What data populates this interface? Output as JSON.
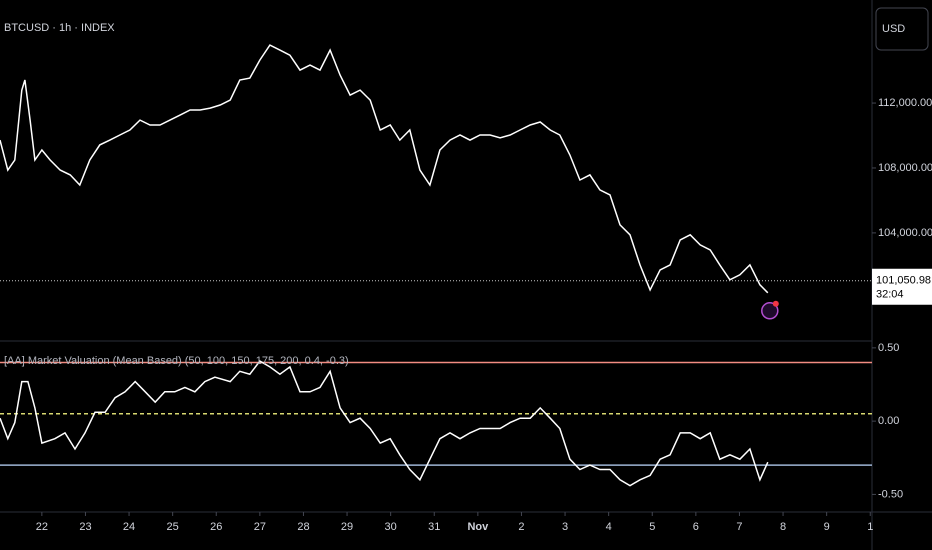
{
  "chart_data": [
    {
      "type": "line",
      "title": "BTCUSD · 1h · INDEX",
      "currency": "USD",
      "x": [
        21.04,
        21.22,
        21.38,
        21.54,
        21.61,
        21.73,
        21.84,
        22.0,
        22.19,
        22.42,
        22.65,
        22.87,
        23.1,
        23.33,
        23.56,
        23.79,
        24.02,
        24.25,
        24.48,
        24.71,
        24.94,
        25.17,
        25.4,
        25.63,
        25.86,
        26.09,
        26.32,
        26.54,
        26.77,
        27.0,
        27.23,
        27.46,
        27.69,
        27.92,
        28.15,
        28.38,
        28.61,
        28.84,
        29.07,
        29.3,
        29.53,
        29.76,
        29.99,
        30.21,
        30.44,
        30.67,
        30.9,
        31.13,
        31.36,
        31.59,
        31.82,
        32.05,
        32.28,
        32.51,
        32.74,
        32.97,
        33.2,
        33.43,
        33.66,
        33.88,
        34.11,
        34.34,
        34.57,
        34.8,
        35.03,
        35.26,
        35.49,
        35.72,
        35.95,
        36.18,
        36.41,
        36.64,
        36.87,
        37.1,
        37.33,
        37.55,
        37.78,
        38.01,
        38.24,
        38.47,
        38.65
      ],
      "values": [
        109720,
        107870,
        108490,
        112800,
        113420,
        110950,
        108490,
        109110,
        108490,
        107870,
        107570,
        106950,
        108490,
        109420,
        109720,
        110030,
        110340,
        110950,
        110650,
        110650,
        110950,
        111260,
        111570,
        111570,
        111690,
        111880,
        112180,
        113420,
        113540,
        114650,
        115570,
        115260,
        114950,
        114030,
        114340,
        114030,
        115260,
        113720,
        112490,
        112800,
        112180,
        110340,
        110650,
        109720,
        110340,
        107870,
        106950,
        109110,
        109720,
        110030,
        109720,
        110030,
        110030,
        109850,
        110030,
        110340,
        110650,
        110830,
        110340,
        110030,
        108800,
        107260,
        107570,
        106650,
        106340,
        104490,
        103880,
        102030,
        100490,
        101720,
        102030,
        103570,
        103880,
        103260,
        102950,
        102030,
        101110,
        101420,
        102030,
        100800,
        100310
      ],
      "color": "#ffffff",
      "xlim": [
        21.04,
        41.04
      ],
      "ylim": [
        97400,
        118350
      ],
      "yticks": [
        {
          "value": 104000,
          "label": "104,000.00"
        },
        {
          "value": 108000,
          "label": "108,000.00"
        },
        {
          "value": 112000,
          "label": "112,000.00"
        }
      ],
      "last_price": {
        "value": 101050.98,
        "label": "101,050.98"
      },
      "countdown": "32:04"
    },
    {
      "type": "line",
      "title": "[AA] Market Valuation (Mean Based) (50, 100, 150, 175, 200, 0.4, -0.3)",
      "x": [
        21.04,
        21.22,
        21.38,
        21.54,
        21.68,
        21.84,
        22.0,
        22.3,
        22.53,
        22.76,
        22.99,
        23.22,
        23.45,
        23.68,
        23.91,
        24.14,
        24.37,
        24.6,
        24.82,
        25.05,
        25.28,
        25.51,
        25.74,
        25.97,
        26.32,
        26.54,
        26.77,
        27.0,
        27.23,
        27.46,
        27.69,
        27.92,
        28.15,
        28.38,
        28.61,
        28.84,
        29.07,
        29.3,
        29.53,
        29.76,
        29.99,
        30.21,
        30.44,
        30.67,
        30.9,
        31.13,
        31.36,
        31.59,
        31.82,
        32.05,
        32.28,
        32.51,
        32.74,
        32.97,
        33.2,
        33.43,
        33.66,
        33.88,
        34.11,
        34.34,
        34.57,
        34.8,
        35.03,
        35.26,
        35.49,
        35.72,
        35.95,
        36.18,
        36.41,
        36.64,
        36.87,
        37.1,
        37.33,
        37.55,
        37.78,
        38.01,
        38.24,
        38.47,
        38.65
      ],
      "values": [
        0.02,
        -0.12,
        -0.01,
        0.27,
        0.27,
        0.09,
        -0.15,
        -0.12,
        -0.08,
        -0.19,
        -0.08,
        0.06,
        0.06,
        0.16,
        0.2,
        0.27,
        0.2,
        0.13,
        0.2,
        0.2,
        0.23,
        0.2,
        0.27,
        0.3,
        0.27,
        0.34,
        0.32,
        0.41,
        0.37,
        0.32,
        0.37,
        0.2,
        0.2,
        0.23,
        0.34,
        0.09,
        -0.01,
        0.02,
        -0.05,
        -0.15,
        -0.12,
        -0.23,
        -0.33,
        -0.4,
        -0.26,
        -0.12,
        -0.08,
        -0.12,
        -0.08,
        -0.05,
        -0.05,
        -0.05,
        -0.01,
        0.02,
        0.02,
        0.09,
        0.02,
        -0.05,
        -0.26,
        -0.33,
        -0.3,
        -0.33,
        -0.33,
        -0.4,
        -0.44,
        -0.4,
        -0.37,
        -0.26,
        -0.23,
        -0.08,
        -0.08,
        -0.12,
        -0.08,
        -0.26,
        -0.23,
        -0.26,
        -0.19,
        -0.4,
        -0.28
      ],
      "color": "#ffffff",
      "levels": [
        {
          "value": 0.4,
          "color": "#f28c82"
        },
        {
          "value": 0.05,
          "color": "#d8d870",
          "dashed": true
        },
        {
          "value": -0.3,
          "color": "#9fb6d6"
        }
      ],
      "xlim": [
        21.04,
        41.04
      ],
      "ylim": [
        -0.62,
        0.54
      ],
      "yticks": [
        {
          "value": 0.5,
          "label": "0.50"
        },
        {
          "value": 0,
          "label": "0.00"
        },
        {
          "value": -0.5,
          "label": "-0.50"
        }
      ],
      "xticks": [
        22,
        23,
        24,
        25,
        26,
        27,
        28,
        29,
        30,
        31,
        {
          "value": 32,
          "label": "Nov"
        },
        {
          "value": 33,
          "label": "2"
        },
        {
          "value": 34,
          "label": "3"
        },
        {
          "value": 35,
          "label": "4"
        },
        {
          "value": 36,
          "label": "5"
        },
        {
          "value": 37,
          "label": "6"
        },
        {
          "value": 38,
          "label": "7"
        },
        {
          "value": 39,
          "label": "8"
        },
        {
          "value": 40,
          "label": "9"
        },
        {
          "value": 41,
          "label": "1"
        }
      ]
    }
  ]
}
